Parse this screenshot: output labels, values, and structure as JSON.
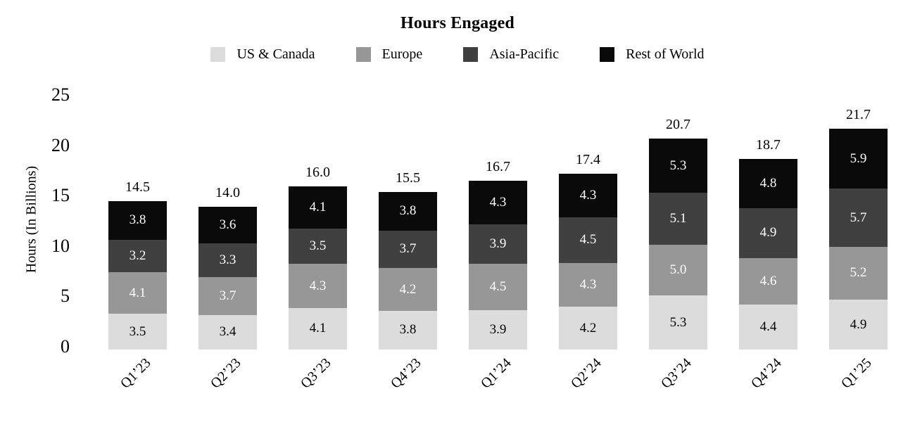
{
  "title": "Hours Engaged",
  "y_axis": {
    "label": "Hours (In Billions)",
    "ticks": [
      0,
      5,
      10,
      15,
      20,
      25
    ],
    "max": 25
  },
  "legend": [
    {
      "label": "US & Canada",
      "color": "#dcdcdc"
    },
    {
      "label": "Europe",
      "color": "#979797"
    },
    {
      "label": "Asia-Pacific",
      "color": "#404040"
    },
    {
      "label": "Rest of World",
      "color": "#0a0a0a"
    }
  ],
  "chart_data": {
    "type": "bar",
    "stacked": true,
    "title": "Hours Engaged",
    "xlabel": "",
    "ylabel": "Hours (In Billions)",
    "ylim": [
      0,
      25
    ],
    "yticks": [
      0,
      5,
      10,
      15,
      20,
      25
    ],
    "grid": false,
    "legend_position": "top",
    "categories": [
      "Q1’23",
      "Q2’23",
      "Q3’23",
      "Q4’23",
      "Q1’24",
      "Q2’24",
      "Q3’24",
      "Q4’24",
      "Q1’25"
    ],
    "series": [
      {
        "name": "US & Canada",
        "color": "#dcdcdc",
        "label_color": "#000000",
        "values": [
          3.5,
          3.4,
          4.1,
          3.8,
          3.9,
          4.2,
          5.3,
          4.4,
          4.9
        ]
      },
      {
        "name": "Europe",
        "color": "#979797",
        "label_color": "#ffffff",
        "values": [
          4.1,
          3.7,
          4.3,
          4.2,
          4.5,
          4.3,
          5.0,
          4.6,
          5.2
        ]
      },
      {
        "name": "Asia-Pacific",
        "color": "#404040",
        "label_color": "#ffffff",
        "values": [
          3.2,
          3.3,
          3.5,
          3.7,
          3.9,
          4.5,
          5.1,
          4.9,
          5.7
        ]
      },
      {
        "name": "Rest of World",
        "color": "#0a0a0a",
        "label_color": "#ffffff",
        "values": [
          3.8,
          3.6,
          4.1,
          3.8,
          4.3,
          4.3,
          5.3,
          4.8,
          5.9
        ]
      }
    ],
    "totals": [
      "14.5",
      "14.0",
      "16.0",
      "15.5",
      "16.7",
      "17.4",
      "20.7",
      "18.7",
      "21.7"
    ]
  }
}
